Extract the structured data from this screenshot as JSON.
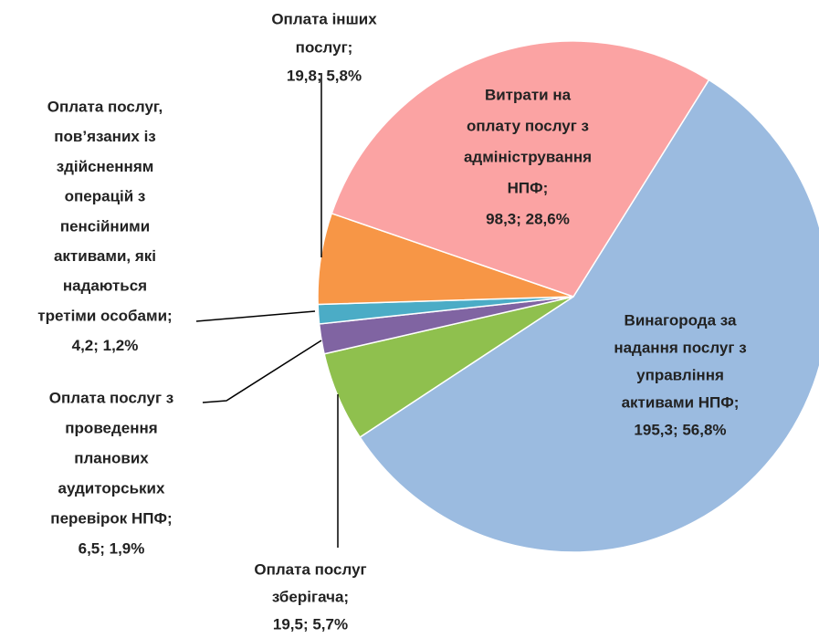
{
  "chart_data": {
    "type": "pie",
    "categories": [
      [
        "Винагорода за",
        "надання послуг з",
        "управління",
        "активами НПФ;"
      ],
      [
        "Оплата послуг",
        "зберігача;"
      ],
      [
        "Оплата послуг з",
        "проведення",
        "планових",
        "аудиторських",
        "перевірок НПФ;"
      ],
      [
        "Оплата послуг,",
        "пов’язаних із",
        "здійсненням",
        "операцій з",
        "пенсійними",
        "активами, які",
        "надаються",
        "третіми особами;"
      ],
      [
        "Оплата інших",
        "послуг;"
      ],
      [
        "Витрати на",
        "оплату послуг з",
        "адміністрування",
        "НПФ;"
      ]
    ],
    "values": [
      195.3,
      19.5,
      6.5,
      4.2,
      19.8,
      98.3
    ],
    "percents": [
      56.8,
      5.7,
      1.9,
      1.2,
      5.8,
      28.6
    ],
    "value_labels": [
      "195,3; 56,8%",
      "19,5; 5,7%",
      "6,5; 1,9%",
      "4,2; 1,2%",
      "19,8; 5,8%",
      "98,3;  28,6%"
    ],
    "colors": [
      "#9bbbe0",
      "#8fc04e",
      "#8064a2",
      "#4bacc6",
      "#f79646",
      "#fba3a3"
    ]
  }
}
